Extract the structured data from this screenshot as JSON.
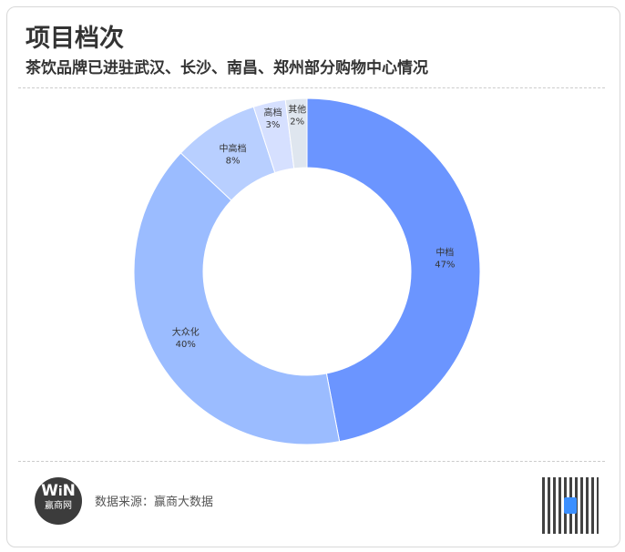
{
  "header": {
    "title": "项目档次",
    "subtitle": "茶饮品牌已进驻武汉、长沙、南昌、郑州部分购物中心情况"
  },
  "footer": {
    "source": "数据来源：赢商大数据",
    "logo_text": "赢商网",
    "logo_mark": "WIN"
  },
  "chart_data": {
    "type": "pie",
    "donut": true,
    "categories": [
      "中档",
      "大众化",
      "中高档",
      "高档",
      "其他"
    ],
    "values": [
      47,
      40,
      8,
      3,
      2
    ],
    "labels": [
      "47%",
      "40%",
      "8%",
      "3%",
      "2%"
    ],
    "colors": [
      "#6b95ff",
      "#9bbcff",
      "#b8cfff",
      "#d6e0ff",
      "#dfe6ef"
    ]
  }
}
